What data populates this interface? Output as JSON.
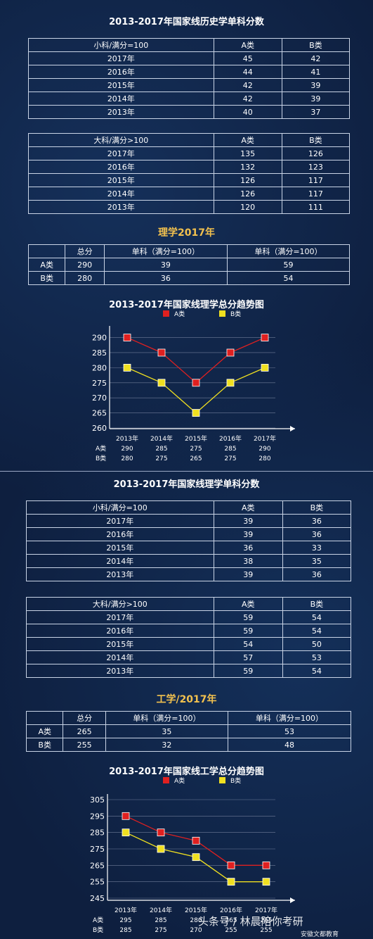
{
  "history": {
    "title": "2013-2017年国家线历史学单科分数",
    "small": {
      "header": [
        "小科/满分=100",
        "A类",
        "B类"
      ],
      "rows": [
        [
          "2017年",
          "45",
          "42"
        ],
        [
          "2016年",
          "44",
          "41"
        ],
        [
          "2015年",
          "42",
          "39"
        ],
        [
          "2014年",
          "42",
          "39"
        ],
        [
          "2013年",
          "40",
          "37"
        ]
      ]
    },
    "large": {
      "header": [
        "大科/满分>100",
        "A类",
        "B类"
      ],
      "rows": [
        [
          "2017年",
          "135",
          "126"
        ],
        [
          "2016年",
          "132",
          "123"
        ],
        [
          "2015年",
          "126",
          "117"
        ],
        [
          "2014年",
          "126",
          "117"
        ],
        [
          "2013年",
          "120",
          "111"
        ]
      ]
    }
  },
  "science": {
    "heading": "理学2017年",
    "summary": {
      "header": [
        "",
        "总分",
        "单科（满分=100）",
        "单科（满分=100）"
      ],
      "rows": [
        [
          "A类",
          "290",
          "39",
          "59"
        ],
        [
          "B类",
          "280",
          "36",
          "54"
        ]
      ]
    },
    "scores_title": "2013-2017年国家线理学单科分数",
    "small": {
      "header": [
        "小科/满分=100",
        "A类",
        "B类"
      ],
      "rows": [
        [
          "2017年",
          "39",
          "36"
        ],
        [
          "2016年",
          "39",
          "36"
        ],
        [
          "2015年",
          "36",
          "33"
        ],
        [
          "2014年",
          "38",
          "35"
        ],
        [
          "2013年",
          "39",
          "36"
        ]
      ]
    },
    "large": {
      "header": [
        "大科/满分>100",
        "A类",
        "B类"
      ],
      "rows": [
        [
          "2017年",
          "59",
          "54"
        ],
        [
          "2016年",
          "59",
          "54"
        ],
        [
          "2015年",
          "54",
          "50"
        ],
        [
          "2014年",
          "57",
          "53"
        ],
        [
          "2013年",
          "59",
          "54"
        ]
      ]
    }
  },
  "engineering": {
    "heading": "工学/2017年",
    "summary": {
      "header": [
        "",
        "总分",
        "单科（满分=100）",
        "单科（满分=100）"
      ],
      "rows": [
        [
          "A类",
          "265",
          "35",
          "53"
        ],
        [
          "B类",
          "255",
          "32",
          "48"
        ]
      ]
    }
  },
  "chart_data": [
    {
      "type": "line",
      "title": "2013-2017年国家线理学总分趋势图",
      "x": [
        "2013年",
        "2014年",
        "2015年",
        "2016年",
        "2017年"
      ],
      "series": [
        {
          "name": "A类",
          "values": [
            290,
            285,
            275,
            285,
            290
          ],
          "color": "#e02020"
        },
        {
          "name": "B类",
          "values": [
            280,
            275,
            265,
            275,
            280
          ],
          "color": "#f0e020"
        }
      ],
      "yticks": [
        260,
        265,
        270,
        275,
        280,
        285,
        290
      ],
      "ylim": [
        260,
        292
      ],
      "legend": "top",
      "table_labels": [
        "A类",
        "B类"
      ],
      "table_rows": [
        [
          "290",
          "285",
          "275",
          "285",
          "290"
        ],
        [
          "280",
          "275",
          "265",
          "275",
          "280"
        ]
      ]
    },
    {
      "type": "line",
      "title": "2013-2017年国家线工学总分趋势图",
      "x": [
        "2013年",
        "2014年",
        "2015年",
        "2016年",
        "2017年"
      ],
      "series": [
        {
          "name": "A类",
          "values": [
            295,
            285,
            280,
            265,
            265
          ],
          "color": "#e02020"
        },
        {
          "name": "B类",
          "values": [
            285,
            275,
            270,
            255,
            255
          ],
          "color": "#f0e020"
        }
      ],
      "yticks": [
        245,
        255,
        265,
        275,
        285,
        295,
        305
      ],
      "ylim": [
        245,
        305
      ],
      "legend": "top",
      "table_labels": [
        "A类",
        "B类"
      ],
      "table_rows": [
        [
          "295",
          "285",
          "280",
          "265",
          "265"
        ],
        [
          "285",
          "275",
          "270",
          "255",
          "255"
        ]
      ]
    }
  ],
  "watermark": {
    "left": "头条号 / 林晨陪你考研",
    "right": "安徽文都教育"
  }
}
